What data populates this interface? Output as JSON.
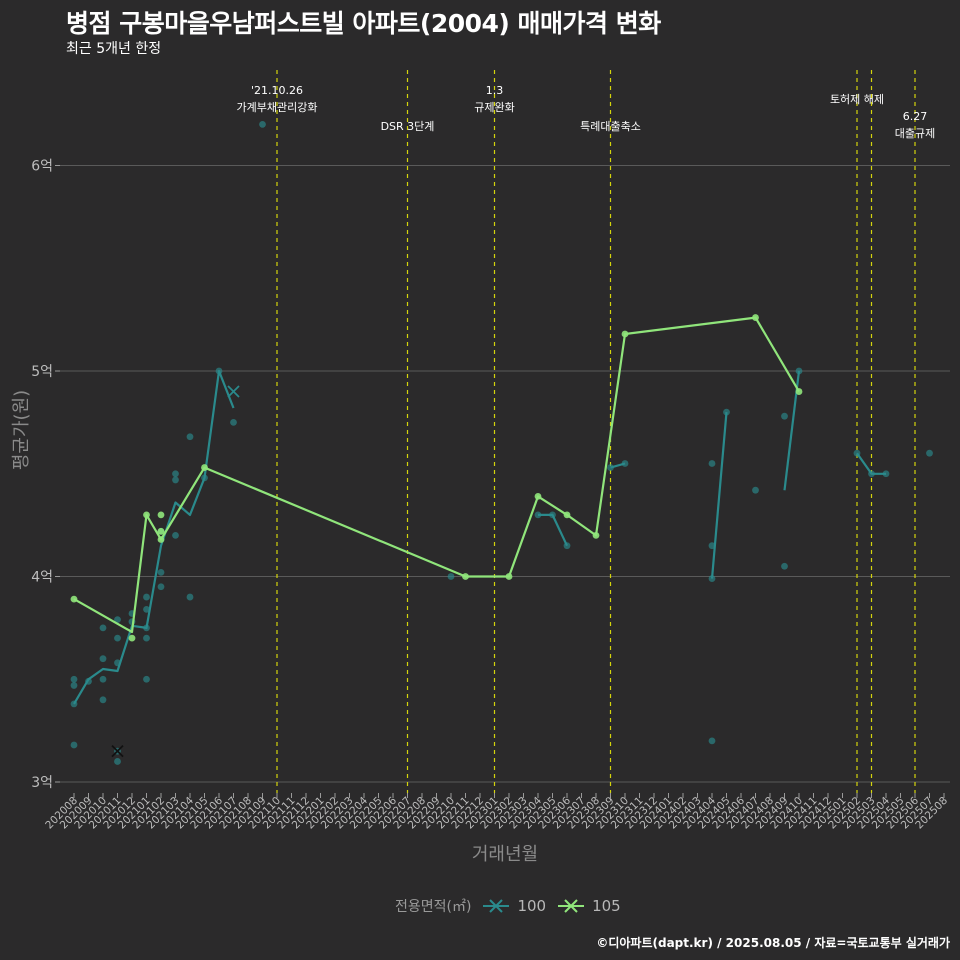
{
  "title": "병점 구봉마을우남퍼스트빌 아파트(2004) 매매가격 변화",
  "subtitle": "최근 5개년 한정",
  "caption": "©디아파트(dapt.kr) / 2025.08.05 / 자료=국토교통부 실거래가",
  "chart_data": {
    "type": "line",
    "xlabel": "거래년월",
    "ylabel": "평균가(원)",
    "categories": [
      "202008",
      "202009",
      "202010",
      "202011",
      "202012",
      "202101",
      "202102",
      "202103",
      "202104",
      "202105",
      "202106",
      "202107",
      "202108",
      "202109",
      "202110",
      "202111",
      "202112",
      "202201",
      "202202",
      "202203",
      "202204",
      "202205",
      "202206",
      "202207",
      "202208",
      "202209",
      "202210",
      "202211",
      "202212",
      "202301",
      "202302",
      "202303",
      "202304",
      "202305",
      "202306",
      "202307",
      "202308",
      "202309",
      "202310",
      "202311",
      "202312",
      "202401",
      "202402",
      "202403",
      "202404",
      "202405",
      "202406",
      "202407",
      "202408",
      "202409",
      "202410",
      "202411",
      "202412",
      "202501",
      "202502",
      "202503",
      "202504",
      "202505",
      "202506",
      "202507",
      "202508"
    ],
    "ylim": [
      2.95,
      6.5
    ],
    "yticks": [
      3,
      4,
      5,
      6
    ],
    "ytick_labels": [
      "3억",
      "4억",
      "5억",
      "6억"
    ],
    "grid": true,
    "legend": {
      "title": "전용면적(㎡)",
      "position": "bottom"
    },
    "colors": {
      "100": "#2a8a8c",
      "105": "#90e57b",
      "event_line": "#d4d40c",
      "grid": "#5a5a5a"
    },
    "series": [
      {
        "name": "100",
        "color": "#2a8a8c",
        "line_segments": [
          [
            [
              "202008",
              3.38
            ],
            [
              "202009",
              3.5
            ],
            [
              "202010",
              3.55
            ],
            [
              "202011",
              3.54
            ],
            [
              "202012",
              3.76
            ],
            [
              "202101",
              3.75
            ],
            [
              "202102",
              4.15
            ],
            [
              "202103",
              4.36
            ],
            [
              "202104",
              4.3
            ],
            [
              "202105",
              4.48
            ],
            [
              "202106",
              5.0
            ],
            [
              "202107",
              4.82
            ]
          ],
          [
            [
              "202304",
              4.3
            ],
            [
              "202305",
              4.3
            ],
            [
              "202306",
              4.15
            ]
          ],
          [
            [
              "202309",
              4.53
            ],
            [
              "202310",
              4.55
            ]
          ],
          [
            [
              "202404",
              3.99
            ],
            [
              "202405",
              4.8
            ]
          ],
          [
            [
              "202409",
              4.42
            ],
            [
              "202410",
              5.0
            ]
          ],
          [
            [
              "202502",
              4.6
            ],
            [
              "202503",
              4.5
            ],
            [
              "202504",
              4.5
            ]
          ]
        ],
        "points": [
          [
            "202008",
            3.38
          ],
          [
            "202008",
            3.47
          ],
          [
            "202008",
            3.5
          ],
          [
            "202008",
            3.18
          ],
          [
            "202009",
            3.49
          ],
          [
            "202010",
            3.75
          ],
          [
            "202010",
            3.6
          ],
          [
            "202010",
            3.5
          ],
          [
            "202010",
            3.4
          ],
          [
            "202011",
            3.79
          ],
          [
            "202011",
            3.7
          ],
          [
            "202011",
            3.58
          ],
          [
            "202011",
            3.15
          ],
          [
            "202011",
            3.1
          ],
          [
            "202012",
            3.82
          ],
          [
            "202012",
            3.78
          ],
          [
            "202101",
            3.9
          ],
          [
            "202101",
            3.84
          ],
          [
            "202101",
            3.75
          ],
          [
            "202101",
            3.7
          ],
          [
            "202101",
            3.5
          ],
          [
            "202102",
            4.02
          ],
          [
            "202102",
            3.95
          ],
          [
            "202102",
            4.22
          ],
          [
            "202103",
            4.5
          ],
          [
            "202103",
            4.47
          ],
          [
            "202103",
            4.2
          ],
          [
            "202104",
            4.68
          ],
          [
            "202104",
            3.9
          ],
          [
            "202105",
            4.48
          ],
          [
            "202106",
            5.0
          ],
          [
            "202107",
            4.75
          ],
          [
            "202109",
            6.2
          ],
          [
            "202210",
            4.0
          ],
          [
            "202304",
            4.3
          ],
          [
            "202305",
            4.3
          ],
          [
            "202306",
            4.15
          ],
          [
            "202309",
            4.53
          ],
          [
            "202310",
            4.55
          ],
          [
            "202404",
            4.55
          ],
          [
            "202404",
            4.15
          ],
          [
            "202404",
            3.99
          ],
          [
            "202404",
            3.2
          ],
          [
            "202405",
            4.8
          ],
          [
            "202407",
            4.42
          ],
          [
            "202409",
            4.78
          ],
          [
            "202409",
            4.05
          ],
          [
            "202410",
            5.0
          ],
          [
            "202502",
            4.6
          ],
          [
            "202503",
            4.5
          ],
          [
            "202504",
            4.5
          ],
          [
            "202507",
            4.6
          ]
        ],
        "cross_points": [
          [
            "202011",
            3.15
          ],
          [
            "202107",
            4.9
          ]
        ]
      },
      {
        "name": "105",
        "color": "#90e57b",
        "line_segments": [
          [
            [
              "202008",
              3.89
            ],
            [
              "202012",
              3.73
            ],
            [
              "202101",
              4.3
            ],
            [
              "202102",
              4.18
            ],
            [
              "202105",
              4.53
            ],
            [
              "202211",
              4.0
            ],
            [
              "202302",
              4.0
            ],
            [
              "202304",
              4.39
            ],
            [
              "202306",
              4.3
            ],
            [
              "202308",
              4.2
            ],
            [
              "202310",
              5.18
            ],
            [
              "202407",
              5.26
            ],
            [
              "202410",
              4.9
            ]
          ]
        ],
        "points": [
          [
            "202008",
            3.89
          ],
          [
            "202012",
            3.7
          ],
          [
            "202101",
            4.3
          ],
          [
            "202102",
            4.3
          ],
          [
            "202102",
            4.22
          ],
          [
            "202102",
            4.18
          ],
          [
            "202105",
            4.53
          ],
          [
            "202211",
            4.0
          ],
          [
            "202302",
            4.0
          ],
          [
            "202304",
            4.39
          ],
          [
            "202306",
            4.3
          ],
          [
            "202308",
            4.2
          ],
          [
            "202310",
            5.18
          ],
          [
            "202407",
            5.26
          ],
          [
            "202410",
            4.9
          ]
        ]
      }
    ],
    "events": [
      {
        "x": "202110",
        "label_lines": [
          "'21.10.26",
          "가계부채관리강화"
        ],
        "level": "high"
      },
      {
        "x": "202207",
        "label_lines": [
          "DSR 3단계"
        ],
        "level": "low"
      },
      {
        "x": "202301",
        "label_lines": [
          "1.3",
          "규제완화"
        ],
        "level": "high"
      },
      {
        "x": "202309",
        "label_lines": [
          "특례대출축소"
        ],
        "level": "low"
      },
      {
        "x": "202502",
        "label_lines": [
          "토허제 해제"
        ],
        "level": "mid"
      },
      {
        "x": "202503",
        "label_lines": [],
        "level": "none"
      },
      {
        "x": "202506",
        "label_lines": [
          "6.27",
          "대출규제"
        ],
        "level": "low2"
      }
    ]
  }
}
